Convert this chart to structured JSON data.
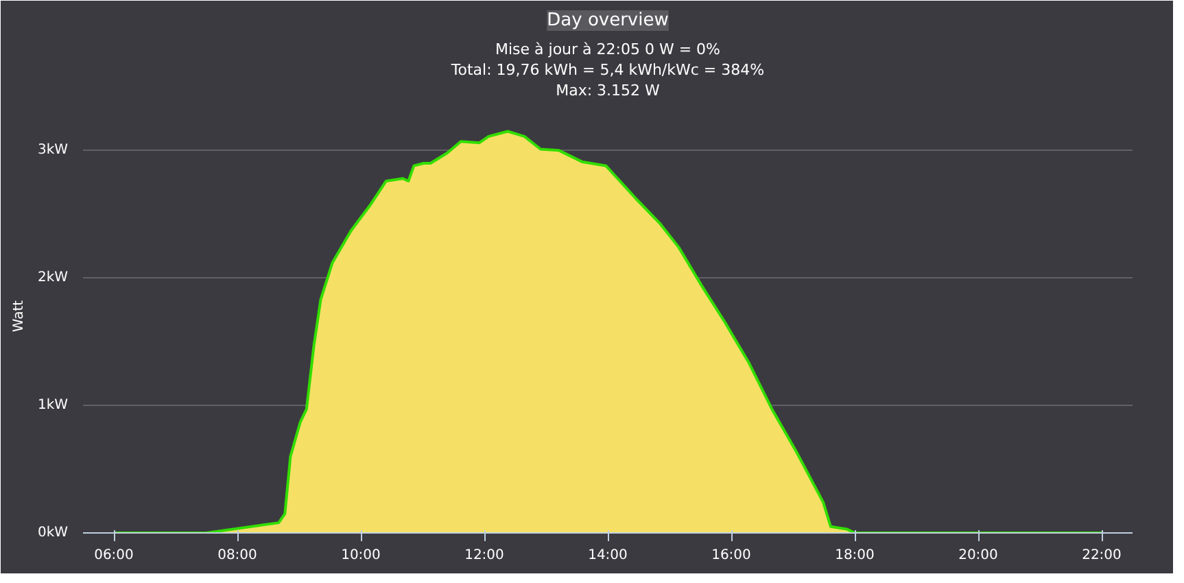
{
  "chart_data": {
    "type": "area",
    "title": "Day overview",
    "annotations": [
      "Mise à jour à 22:05 0 W = 0%",
      "Total: 19,76 kWh = 5,4 kWh/kWc = 384%",
      "Max: 3.152 W"
    ],
    "ylabel": "Watt",
    "x": [
      6.0,
      7.04,
      7.5,
      8.67,
      8.77,
      8.86,
      9.02,
      9.12,
      9.24,
      9.35,
      9.54,
      9.84,
      10.15,
      10.41,
      10.68,
      10.77,
      10.86,
      11.02,
      11.13,
      11.4,
      11.62,
      11.92,
      12.07,
      12.38,
      12.65,
      12.91,
      13.21,
      13.59,
      13.97,
      14.12,
      14.31,
      14.46,
      14.84,
      15.15,
      15.52,
      15.9,
      16.28,
      16.66,
      17.04,
      17.49,
      17.61,
      17.87,
      18.0,
      22.0
    ],
    "series": [
      {
        "color": "#f5e065",
        "values": [
          0,
          0,
          0,
          0.08,
          0.15,
          0.6,
          0.87,
          0.97,
          1.47,
          1.83,
          2.12,
          2.37,
          2.57,
          2.76,
          2.78,
          2.76,
          2.88,
          2.9,
          2.9,
          2.98,
          3.07,
          3.06,
          3.11,
          3.15,
          3.11,
          3.01,
          3.0,
          2.91,
          2.88,
          2.8,
          2.7,
          2.62,
          2.43,
          2.24,
          1.94,
          1.65,
          1.34,
          0.97,
          0.65,
          0.24,
          0.05,
          0.03,
          0,
          0
        ]
      }
    ],
    "xlim": [
      5.5,
      22.5
    ],
    "xticks": [
      {
        "value": 6,
        "label": "06:00"
      },
      {
        "value": 8,
        "label": "08:00"
      },
      {
        "value": 10,
        "label": "10:00"
      },
      {
        "value": 12,
        "label": "12:00"
      },
      {
        "value": 14,
        "label": "14:00"
      },
      {
        "value": 16,
        "label": "16:00"
      },
      {
        "value": 18,
        "label": "18:00"
      },
      {
        "value": 20,
        "label": "20:00"
      },
      {
        "value": 22,
        "label": "22:00"
      }
    ],
    "ylim": [
      0,
      3.4
    ],
    "yticks": [
      {
        "value": 0,
        "label": "0kW"
      },
      {
        "value": 1,
        "label": "1kW"
      },
      {
        "value": 2,
        "label": "2kW"
      },
      {
        "value": 3,
        "label": "3kW"
      }
    ],
    "grid": "y"
  }
}
